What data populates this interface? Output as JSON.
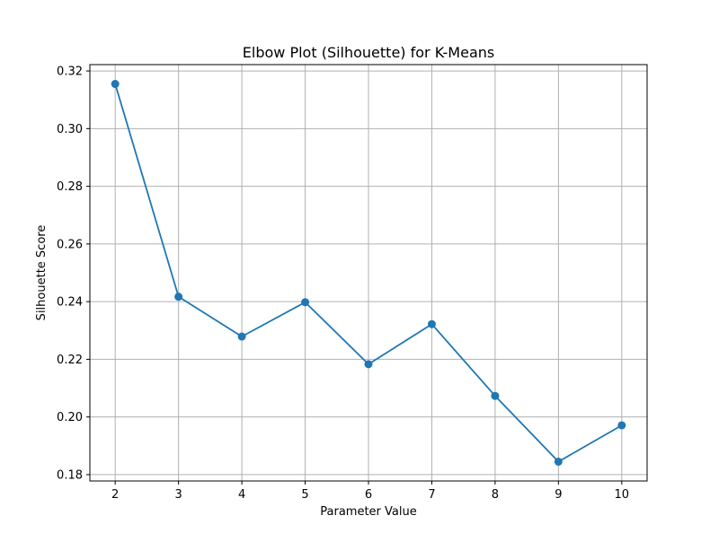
{
  "chart_data": {
    "type": "line",
    "title": "Elbow Plot (Silhouette) for K-Means",
    "xlabel": "Parameter Value",
    "ylabel": "Silhouette Score",
    "x": [
      2,
      3,
      4,
      5,
      6,
      7,
      8,
      9,
      10
    ],
    "series": [
      {
        "values": [
          0.3155,
          0.2417,
          0.2279,
          0.2398,
          0.2183,
          0.2322,
          0.2073,
          0.1845,
          0.1971
        ],
        "color": "#1f77b4",
        "marker": "circle"
      }
    ],
    "xlim": [
      1.6,
      10.4
    ],
    "ylim": [
      0.1778,
      0.3222
    ],
    "x_ticks": [
      2,
      3,
      4,
      5,
      6,
      7,
      8,
      9,
      10
    ],
    "x_tick_labels": [
      "2",
      "3",
      "4",
      "5",
      "6",
      "7",
      "8",
      "9",
      "10"
    ],
    "y_ticks": [
      0.18,
      0.2,
      0.22,
      0.24,
      0.26,
      0.28,
      0.3,
      0.32
    ],
    "y_tick_labels": [
      "0.18",
      "0.20",
      "0.22",
      "0.24",
      "0.26",
      "0.28",
      "0.30",
      "0.32"
    ],
    "grid": true,
    "grid_color": "#b0b0b0",
    "legend": "none"
  }
}
